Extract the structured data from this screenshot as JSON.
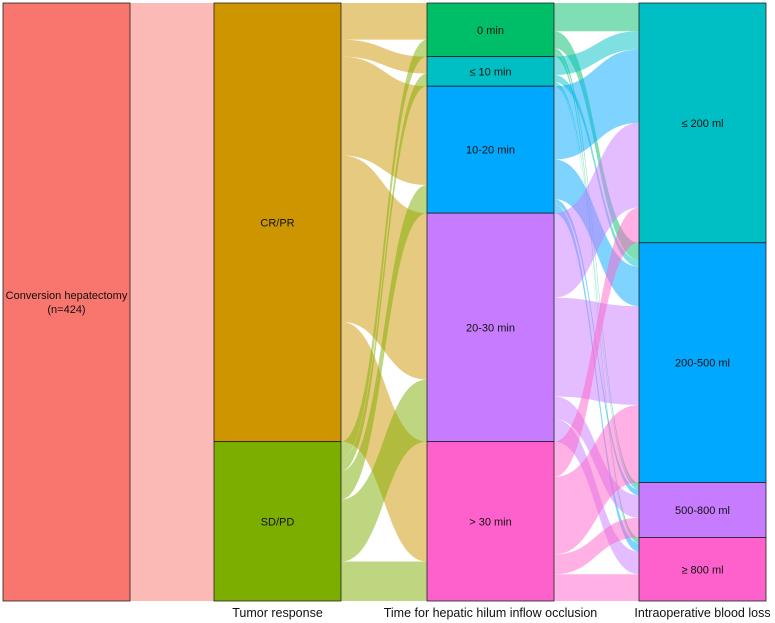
{
  "chart_data": {
    "type": "sankey",
    "axes": [
      "",
      "Tumor response",
      "Time for hepatic hilum inflow occlusion",
      "Intraoperative blood loss"
    ],
    "columns": [
      {
        "axis": "",
        "nodes": [
          {
            "id": "conv",
            "label": "Conversion hepatectomy",
            "sublabel": "(n=424)",
            "value": 424,
            "color": "#F8766D"
          }
        ]
      },
      {
        "axis": "Tumor response",
        "nodes": [
          {
            "id": "crpr",
            "label": "CR/PR",
            "value": 311,
            "color": "#CD9600"
          },
          {
            "id": "sdpd",
            "label": "SD/PD",
            "value": 113,
            "color": "#7CAE00"
          }
        ]
      },
      {
        "axis": "Time for hepatic hilum inflow occlusion",
        "nodes": [
          {
            "id": "t0",
            "label": "0 min",
            "value": 38,
            "color": "#00BE67"
          },
          {
            "id": "t10",
            "label": "≤ 10 min",
            "value": 21,
            "color": "#00BFC4"
          },
          {
            "id": "t1020",
            "label": "10-20 min",
            "value": 90,
            "color": "#00A9FF"
          },
          {
            "id": "t2030",
            "label": "20-30 min",
            "value": 162,
            "color": "#C77CFF"
          },
          {
            "id": "t30",
            "label": "> 30 min",
            "value": 113,
            "color": "#FF61CC"
          }
        ]
      },
      {
        "axis": "Intraoperative blood loss",
        "nodes": [
          {
            "id": "b200",
            "label": "≤ 200 ml",
            "value": 170,
            "color": "#00BFC4"
          },
          {
            "id": "b500",
            "label": "200-500 ml",
            "value": 170,
            "color": "#00A9FF"
          },
          {
            "id": "b800",
            "label": "500-800 ml",
            "value": 39,
            "color": "#C77CFF"
          },
          {
            "id": "b800p",
            "label": "≥ 800 ml",
            "value": 45,
            "color": "#FF61CC"
          }
        ]
      }
    ],
    "flows": [
      {
        "from": "conv",
        "to": "crpr",
        "value": 311
      },
      {
        "from": "conv",
        "to": "sdpd",
        "value": 113
      },
      {
        "from": "crpr",
        "to": "t0",
        "value": 26
      },
      {
        "from": "crpr",
        "to": "t10",
        "value": 12
      },
      {
        "from": "crpr",
        "to": "t1020",
        "value": 70
      },
      {
        "from": "crpr",
        "to": "t2030",
        "value": 118
      },
      {
        "from": "crpr",
        "to": "t30",
        "value": 85
      },
      {
        "from": "sdpd",
        "to": "t0",
        "value": 12
      },
      {
        "from": "sdpd",
        "to": "t10",
        "value": 9
      },
      {
        "from": "sdpd",
        "to": "t1020",
        "value": 20
      },
      {
        "from": "sdpd",
        "to": "t2030",
        "value": 44
      },
      {
        "from": "sdpd",
        "to": "t30",
        "value": 28
      },
      {
        "from": "t0",
        "to": "b200",
        "value": 20
      },
      {
        "from": "t0",
        "to": "b500",
        "value": 12
      },
      {
        "from": "t0",
        "to": "b800",
        "value": 3
      },
      {
        "from": "t0",
        "to": "b800p",
        "value": 3
      },
      {
        "from": "t10",
        "to": "b200",
        "value": 13
      },
      {
        "from": "t10",
        "to": "b500",
        "value": 5
      },
      {
        "from": "t10",
        "to": "b800",
        "value": 2
      },
      {
        "from": "t10",
        "to": "b800p",
        "value": 1
      },
      {
        "from": "t1020",
        "to": "b200",
        "value": 52
      },
      {
        "from": "t1020",
        "to": "b500",
        "value": 28
      },
      {
        "from": "t1020",
        "to": "b800",
        "value": 4
      },
      {
        "from": "t1020",
        "to": "b800p",
        "value": 6
      },
      {
        "from": "t2030",
        "to": "b200",
        "value": 60
      },
      {
        "from": "t2030",
        "to": "b500",
        "value": 70
      },
      {
        "from": "t2030",
        "to": "b800",
        "value": 16
      },
      {
        "from": "t2030",
        "to": "b800p",
        "value": 16
      },
      {
        "from": "t30",
        "to": "b200",
        "value": 25
      },
      {
        "from": "t30",
        "to": "b500",
        "value": 55
      },
      {
        "from": "t30",
        "to": "b800",
        "value": 14
      },
      {
        "from": "t30",
        "to": "b800p",
        "value": 19
      }
    ]
  }
}
